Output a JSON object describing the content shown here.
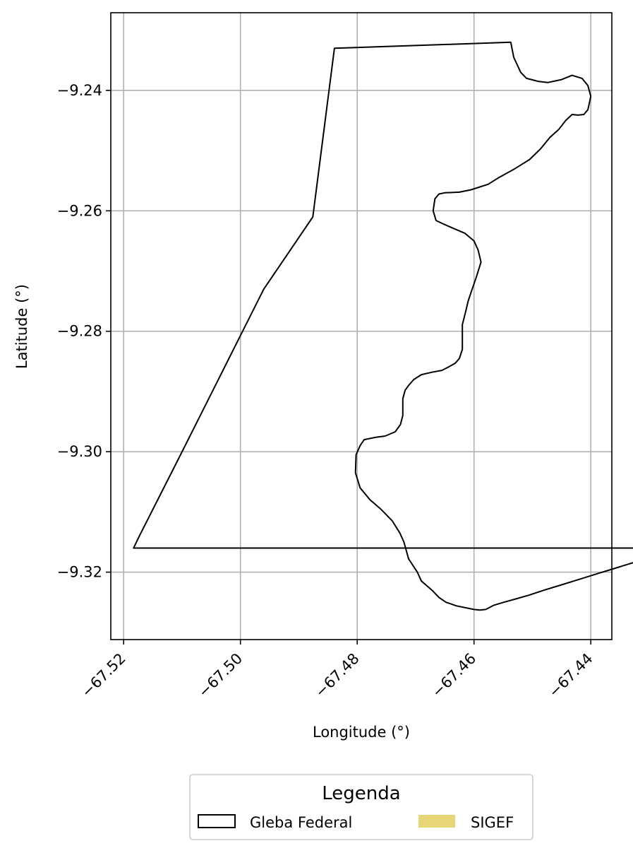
{
  "chart_data": {
    "type": "map",
    "xlabel": "Longitude (°)",
    "ylabel": "Latitude (°)",
    "xlim": [
      -67.5222,
      -67.4364
    ],
    "ylim": [
      -9.3312,
      -9.2271
    ],
    "grid": true,
    "x_ticks": [
      -67.52,
      -67.5,
      -67.48,
      -67.46,
      -67.44
    ],
    "x_tick_labels": [
      "−67.52",
      "−67.50",
      "−67.48",
      "−67.46",
      "−67.44"
    ],
    "y_ticks": [
      -9.24,
      -9.26,
      -9.28,
      -9.3,
      -9.32
    ],
    "y_tick_labels": [
      "−9.24",
      "−9.26",
      "−9.28",
      "−9.30",
      "−9.32"
    ],
    "legend": {
      "title": "Legenda",
      "placement": "bottom-center",
      "items": [
        {
          "label": "Gleba Federal",
          "style": "outline",
          "color": "#000000"
        },
        {
          "label": "SIGEF",
          "style": "fill",
          "color": "#e8d576"
        }
      ]
    },
    "series": [
      {
        "name": "Gleba Federal",
        "kind": "polygon-outline",
        "color": "#000000",
        "points": [
          [
            -67.4839,
            -9.233
          ],
          [
            -67.4537,
            -9.232
          ],
          [
            -67.4532,
            -9.2345
          ],
          [
            -67.452,
            -9.237
          ],
          [
            -67.451,
            -9.238
          ],
          [
            -67.449,
            -9.2385
          ],
          [
            -67.4474,
            -9.2387
          ],
          [
            -67.445,
            -9.2382
          ],
          [
            -67.4432,
            -9.2375
          ],
          [
            -67.4415,
            -9.238
          ],
          [
            -67.4405,
            -9.2392
          ],
          [
            -67.44,
            -9.241
          ],
          [
            -67.4405,
            -9.2432
          ],
          [
            -67.4412,
            -9.244
          ],
          [
            -67.4422,
            -9.2441
          ],
          [
            -67.4432,
            -9.244
          ],
          [
            -67.4443,
            -9.245
          ],
          [
            -67.4455,
            -9.2465
          ],
          [
            -67.447,
            -9.2478
          ],
          [
            -67.4486,
            -9.2497
          ],
          [
            -67.4505,
            -9.2515
          ],
          [
            -67.453,
            -9.253
          ],
          [
            -67.4558,
            -9.2545
          ],
          [
            -67.4576,
            -9.2556
          ],
          [
            -67.4605,
            -9.2565
          ],
          [
            -67.4625,
            -9.2569
          ],
          [
            -67.465,
            -9.257
          ],
          [
            -67.466,
            -9.2572
          ],
          [
            -67.4667,
            -9.258
          ],
          [
            -67.467,
            -9.26
          ],
          [
            -67.4665,
            -9.2616
          ],
          [
            -67.4652,
            -9.2622
          ],
          [
            -67.4638,
            -9.2628
          ],
          [
            -67.4616,
            -9.2637
          ],
          [
            -67.46,
            -9.265
          ],
          [
            -67.4593,
            -9.2665
          ],
          [
            -67.4588,
            -9.2685
          ],
          [
            -67.4596,
            -9.271
          ],
          [
            -67.4605,
            -9.2735
          ],
          [
            -67.461,
            -9.275
          ],
          [
            -67.4615,
            -9.277
          ],
          [
            -67.462,
            -9.2789
          ],
          [
            -67.462,
            -9.283
          ],
          [
            -67.4625,
            -9.2845
          ],
          [
            -67.4632,
            -9.2853
          ],
          [
            -67.4645,
            -9.286
          ],
          [
            -67.4655,
            -9.2865
          ],
          [
            -67.4672,
            -9.2868
          ],
          [
            -67.469,
            -9.2872
          ],
          [
            -67.4703,
            -9.288
          ],
          [
            -67.4712,
            -9.289
          ],
          [
            -67.4718,
            -9.2898
          ],
          [
            -67.4722,
            -9.2912
          ],
          [
            -67.4722,
            -9.294
          ],
          [
            -67.4726,
            -9.2955
          ],
          [
            -67.4735,
            -9.2967
          ],
          [
            -67.4752,
            -9.2974
          ],
          [
            -67.4768,
            -9.2976
          ],
          [
            -67.4788,
            -9.298
          ],
          [
            -67.4795,
            -9.299
          ],
          [
            -67.4802,
            -9.3005
          ],
          [
            -67.4803,
            -9.3035
          ],
          [
            -67.4795,
            -9.306
          ],
          [
            -67.4778,
            -9.308
          ],
          [
            -67.476,
            -9.3095
          ],
          [
            -67.474,
            -9.3115
          ],
          [
            -67.4727,
            -9.3135
          ],
          [
            -67.472,
            -9.315
          ],
          [
            -67.4712,
            -9.3178
          ],
          [
            -67.4697,
            -9.32
          ],
          [
            -67.469,
            -9.3215
          ],
          [
            -67.4672,
            -9.323
          ],
          [
            -67.466,
            -9.3242
          ],
          [
            -67.4648,
            -9.325
          ],
          [
            -67.463,
            -9.3256
          ],
          [
            -67.46,
            -9.3262
          ],
          [
            -67.459,
            -9.3263
          ],
          [
            -67.458,
            -9.3262
          ],
          [
            -67.4566,
            -9.3255
          ],
          [
            -67.4549,
            -9.325
          ],
          [
            -67.453,
            -9.3245
          ],
          [
            -67.4505,
            -9.3238
          ],
          [
            -67.448,
            -9.323
          ],
          [
            -67.445,
            -9.3221
          ],
          [
            -67.442,
            -9.3212
          ],
          [
            -67.439,
            -9.3203
          ],
          [
            -67.436,
            -9.3194
          ],
          [
            -67.433,
            -9.3185
          ],
          [
            -67.43,
            -9.3177
          ],
          [
            -67.427,
            -9.3168
          ],
          [
            -67.424,
            -9.316
          ],
          [
            -67.5183,
            -9.316
          ],
          [
            -67.5173,
            -9.314
          ],
          [
            -67.51,
            -9.3
          ],
          [
            -67.496,
            -9.273
          ],
          [
            -67.4876,
            -9.261
          ]
        ]
      }
    ]
  }
}
